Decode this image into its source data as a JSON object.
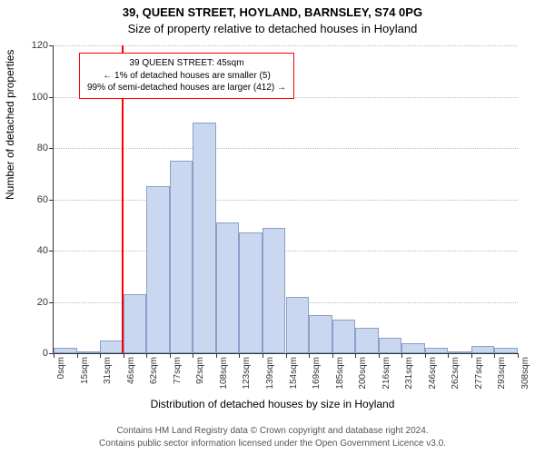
{
  "title1": "39, QUEEN STREET, HOYLAND, BARNSLEY, S74 0PG",
  "title2": "Size of property relative to detached houses in Hoyland",
  "ylabel": "Number of detached properties",
  "xlabel": "Distribution of detached houses by size in Hoyland",
  "footer1": "Contains HM Land Registry data © Crown copyright and database right 2024.",
  "footer2": "Contains public sector information licensed under the Open Government Licence v3.0.",
  "chart": {
    "type": "histogram",
    "ylim": [
      0,
      120
    ],
    "yticks": [
      0,
      20,
      40,
      60,
      80,
      100,
      120
    ],
    "xticks": [
      "0sqm",
      "15sqm",
      "31sqm",
      "46sqm",
      "62sqm",
      "77sqm",
      "92sqm",
      "108sqm",
      "123sqm",
      "139sqm",
      "154sqm",
      "169sqm",
      "185sqm",
      "200sqm",
      "216sqm",
      "231sqm",
      "246sqm",
      "262sqm",
      "277sqm",
      "293sqm",
      "308sqm"
    ],
    "bars": [
      2,
      0,
      5,
      23,
      65,
      75,
      90,
      51,
      47,
      49,
      22,
      15,
      13,
      10,
      6,
      4,
      2,
      0,
      3,
      2
    ],
    "bar_fill": "#c9d7f0",
    "bar_stroke": "#8aa0c8",
    "grid_color": "#bbbbbb",
    "marker_position_sqm": 45,
    "marker_color": "#ff0000",
    "callout": {
      "line1": "39 QUEEN STREET: 45sqm",
      "line2": "← 1% of detached houses are smaller (5)",
      "line3": "99% of semi-detached houses are larger (412) →",
      "border_color": "#ff0000"
    }
  }
}
